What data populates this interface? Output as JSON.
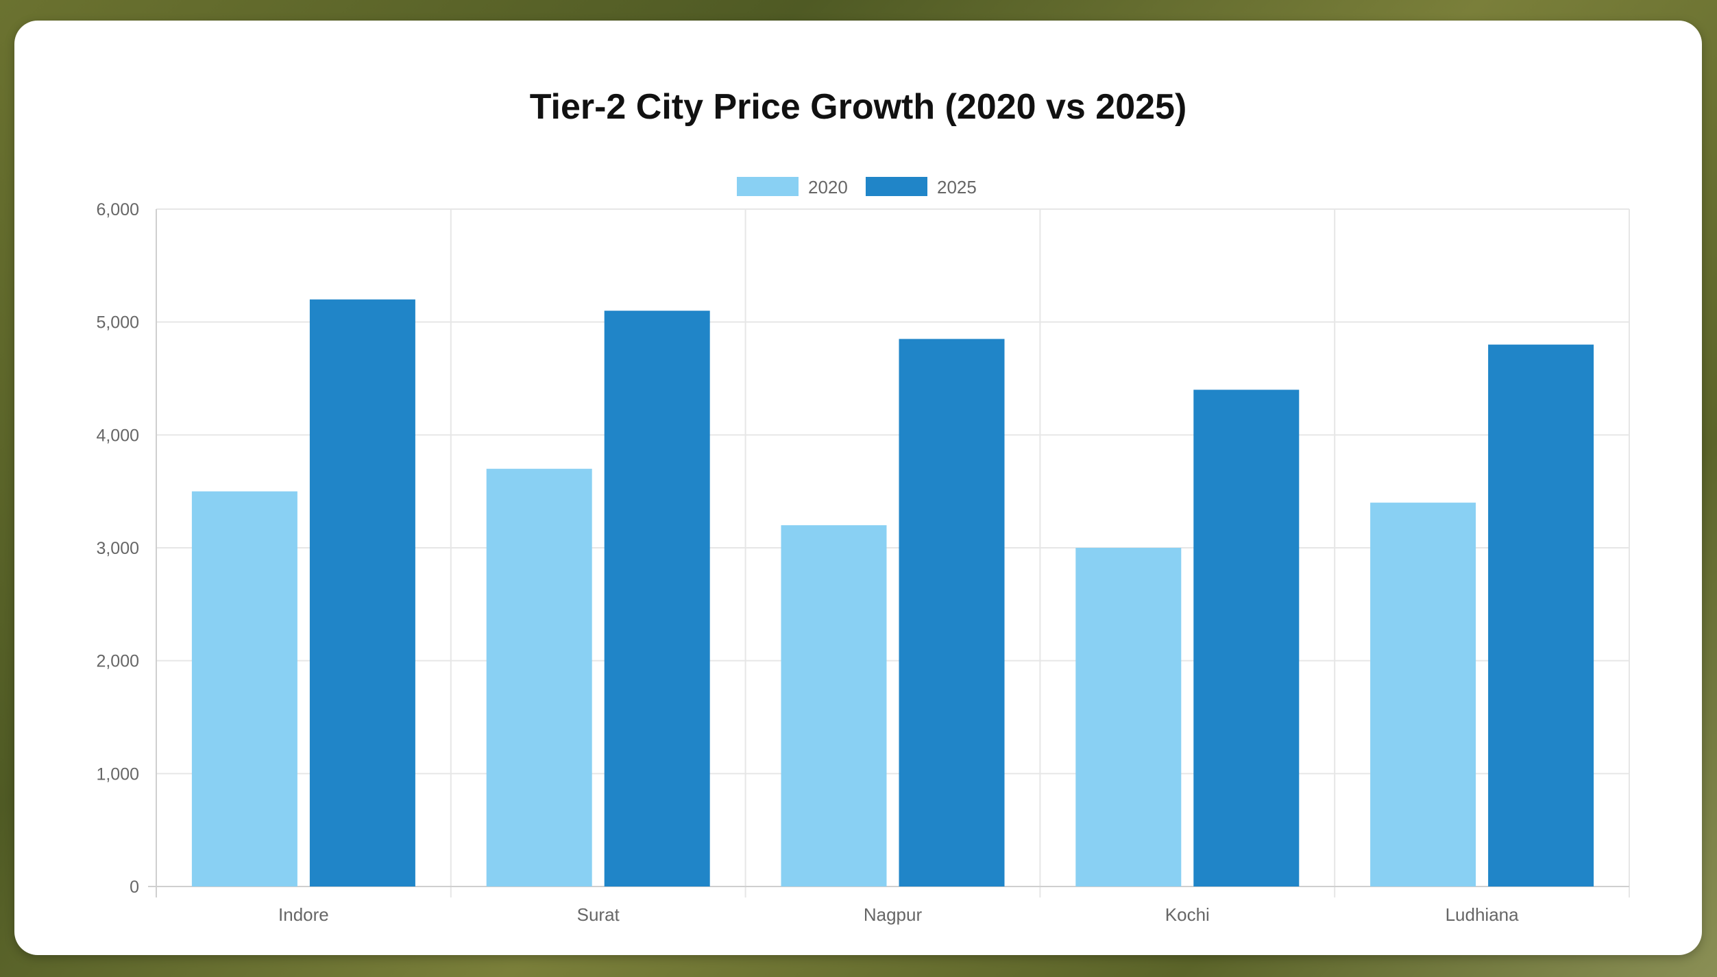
{
  "chart_data": {
    "type": "bar",
    "title": "Tier-2 City Price Growth (2020 vs 2025)",
    "xlabel": "",
    "ylabel": "",
    "categories": [
      "Indore",
      "Surat",
      "Nagpur",
      "Kochi",
      "Ludhiana"
    ],
    "series": [
      {
        "name": "2020",
        "color": "#89d0f3",
        "values": [
          3500,
          3700,
          3200,
          3000,
          3400
        ]
      },
      {
        "name": "2025",
        "color": "#2085c8",
        "values": [
          5200,
          5100,
          4850,
          4400,
          4800
        ]
      }
    ],
    "ylim": [
      0,
      6000
    ],
    "yticks": [
      "0",
      "1,000",
      "2,000",
      "3,000",
      "4,000",
      "5,000",
      "6,000"
    ],
    "ytick_values": [
      0,
      1000,
      2000,
      3000,
      4000,
      5000,
      6000
    ],
    "grid": true,
    "legend_position": "top-center"
  }
}
